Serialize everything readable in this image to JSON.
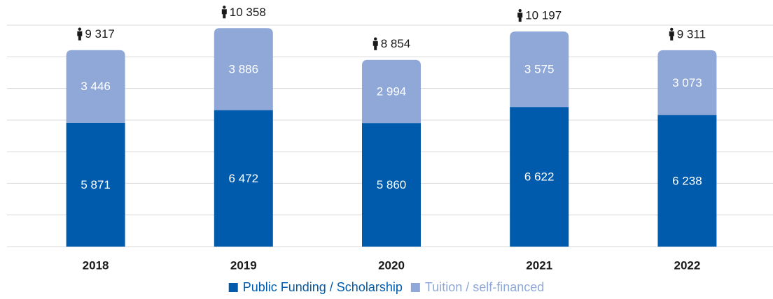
{
  "chart_data": {
    "type": "stacked_bar",
    "categories": [
      "2018",
      "2019",
      "2020",
      "2021",
      "2022"
    ],
    "series": [
      {
        "name": "Public Funding / Scholarship",
        "color": "#005bac",
        "values": [
          5871,
          6472,
          5860,
          6622,
          6238
        ],
        "value_labels": [
          "5 871",
          "6 472",
          "5 860",
          "6 622",
          "6 238"
        ]
      },
      {
        "name": "Tuition / self-financed",
        "color": "#8fa8d8",
        "values": [
          3446,
          3886,
          2994,
          3575,
          3073
        ],
        "value_labels": [
          "3 446",
          "3 886",
          "2 994",
          "3 575",
          "3 073"
        ]
      }
    ],
    "totals": [
      9317,
      10358,
      8854,
      10197,
      9311
    ],
    "total_labels": [
      "9 317",
      "10 358",
      "8 854",
      "10 197",
      "9 311"
    ],
    "ylim": [
      0,
      10500
    ],
    "yticks": [
      0,
      1500,
      3000,
      4500,
      6000,
      7500,
      9000,
      10500
    ],
    "grid": true
  }
}
